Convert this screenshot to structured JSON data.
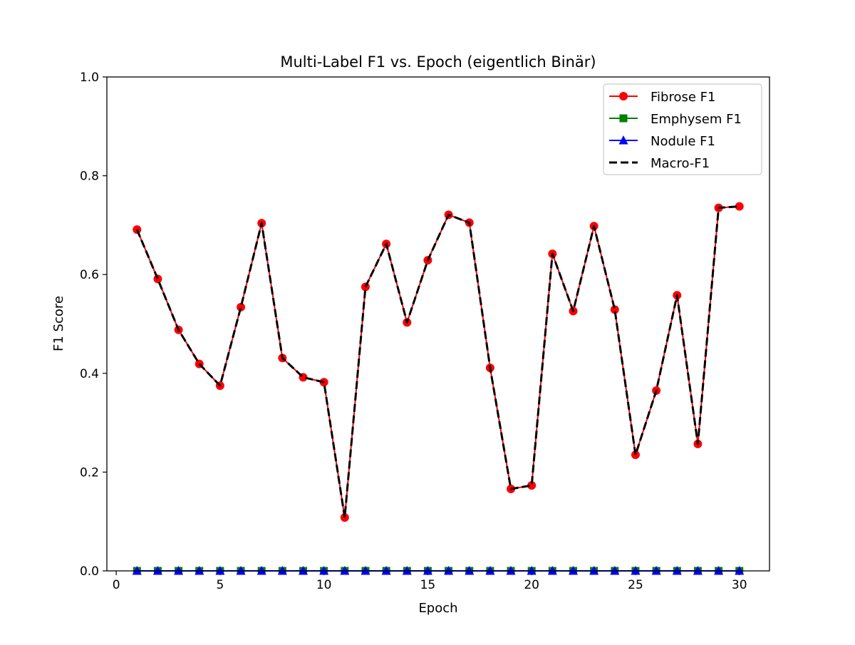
{
  "chart_data": {
    "type": "line",
    "title": "Multi-Label F1 vs. Epoch (eigentlich Binär)",
    "xlabel": "Epoch",
    "ylabel": "F1 Score",
    "xlim": [
      -0.45,
      31.45
    ],
    "ylim": [
      0.0,
      1.0
    ],
    "xticks": [
      0,
      5,
      10,
      15,
      20,
      25,
      30
    ],
    "yticks": [
      0.0,
      0.2,
      0.4,
      0.6,
      0.8,
      1.0
    ],
    "xtick_labels": [
      "0",
      "5",
      "10",
      "15",
      "20",
      "25",
      "30"
    ],
    "ytick_labels": [
      "0.0",
      "0.2",
      "0.4",
      "0.6",
      "0.8",
      "1.0"
    ],
    "grid": false,
    "legend_position": "top-right",
    "x": [
      1,
      2,
      3,
      4,
      5,
      6,
      7,
      8,
      9,
      10,
      11,
      12,
      13,
      14,
      15,
      16,
      17,
      18,
      19,
      20,
      21,
      22,
      23,
      24,
      25,
      26,
      27,
      28,
      29,
      30
    ],
    "series": [
      {
        "name": "Fibrose F1",
        "color": "#ff0000",
        "marker": "circle",
        "linestyle": "solid",
        "values": [
          0.691,
          0.591,
          0.488,
          0.419,
          0.375,
          0.534,
          0.704,
          0.431,
          0.392,
          0.382,
          0.108,
          0.575,
          0.662,
          0.503,
          0.629,
          0.721,
          0.705,
          0.411,
          0.166,
          0.173,
          0.642,
          0.526,
          0.698,
          0.529,
          0.235,
          0.365,
          0.558,
          0.257,
          0.735,
          0.738
        ]
      },
      {
        "name": "Emphysem F1",
        "color": "#008000",
        "marker": "square",
        "linestyle": "solid",
        "values": [
          0,
          0,
          0,
          0,
          0,
          0,
          0,
          0,
          0,
          0,
          0,
          0,
          0,
          0,
          0,
          0,
          0,
          0,
          0,
          0,
          0,
          0,
          0,
          0,
          0,
          0,
          0,
          0,
          0,
          0
        ]
      },
      {
        "name": "Nodule F1",
        "color": "#0000ff",
        "marker": "triangle",
        "linestyle": "solid",
        "values": [
          0,
          0,
          0,
          0,
          0,
          0,
          0,
          0,
          0,
          0,
          0,
          0,
          0,
          0,
          0,
          0,
          0,
          0,
          0,
          0,
          0,
          0,
          0,
          0,
          0,
          0,
          0,
          0,
          0,
          0
        ]
      },
      {
        "name": "Macro-F1",
        "color": "#000000",
        "marker": "none",
        "linestyle": "dashed",
        "values": [
          0.691,
          0.591,
          0.488,
          0.419,
          0.375,
          0.534,
          0.704,
          0.431,
          0.392,
          0.382,
          0.108,
          0.575,
          0.662,
          0.503,
          0.629,
          0.721,
          0.705,
          0.411,
          0.166,
          0.173,
          0.642,
          0.526,
          0.698,
          0.529,
          0.235,
          0.365,
          0.558,
          0.257,
          0.735,
          0.738
        ]
      }
    ]
  }
}
